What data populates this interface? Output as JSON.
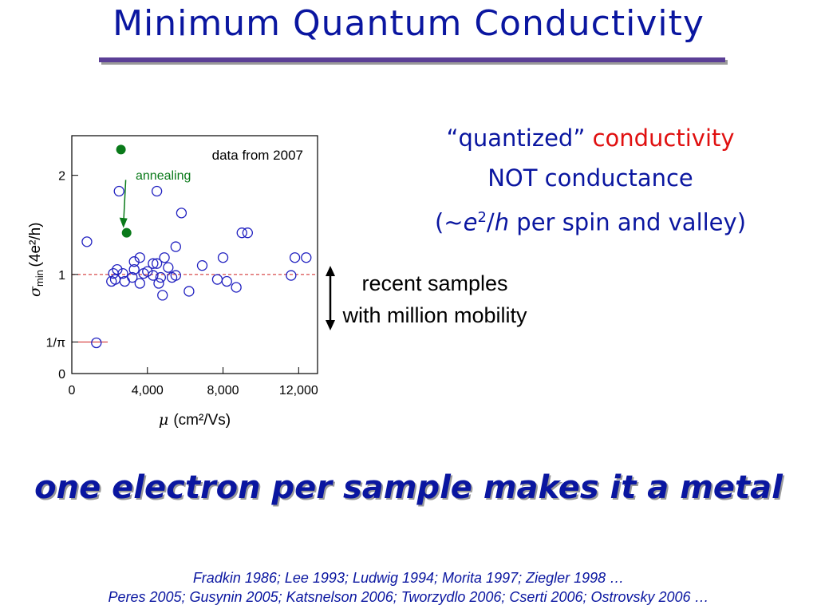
{
  "title": "Minimum Quantum Conductivity",
  "side_text": {
    "line1_quoted": "“quantized”",
    "line1_red": "conductivity",
    "line2": "NOT conductance",
    "line3_open": "(~",
    "line3_e": "e",
    "line3_sup": "2",
    "line3_slash": "/",
    "line3_h": "h",
    "line3_rest": " per spin and valley)"
  },
  "recent_note": {
    "line1": "recent samples",
    "line2": "with million mobility"
  },
  "tagline": "one electron per sample makes it a metal",
  "references": {
    "line1": "Fradkin 1986; Lee 1993; Ludwig 1994; Morita 1997; Ziegler 1998 …",
    "line2": "Peres 2005; Gusynin 2005; Katsnelson 2006; Tworzydlo 2006; Cserti 2006; Ostrovsky 2006 …"
  },
  "colors": {
    "title": "#0a16a0",
    "rule": "#5b3f96",
    "open_marker": "#2020c0",
    "filled_marker": "#0a7a1a",
    "reference_line": "#d02020",
    "highlight": "#e01010"
  },
  "chart_data": {
    "type": "scatter",
    "title": "",
    "xlabel_symbol": "μ",
    "xlabel_unit": "(cm²/Vs)",
    "ylabel_symbol": "σ",
    "ylabel_sub": "min",
    "ylabel_unit": "(4e²/h)",
    "xlim": [
      0,
      13000
    ],
    "ylim": [
      0,
      2.4
    ],
    "x_ticks": [
      {
        "value": 0,
        "label": "0"
      },
      {
        "value": 4000,
        "label": "4,000"
      },
      {
        "value": 8000,
        "label": "8,000"
      },
      {
        "value": 12000,
        "label": "12,000"
      }
    ],
    "y_ticks": [
      {
        "value": 0,
        "label": "0"
      },
      {
        "value": 0.3183,
        "label": "1/π"
      },
      {
        "value": 1,
        "label": "1"
      },
      {
        "value": 2,
        "label": "2"
      }
    ],
    "annotations": {
      "data_note": "data from 2007",
      "annealing": "annealing"
    },
    "reference_lines": [
      {
        "value": 1,
        "style": "dashed"
      },
      {
        "value": 0.3183,
        "style": "solid",
        "x_end": 1900
      }
    ],
    "series": [
      {
        "style": "open",
        "points": [
          [
            1300,
            0.31
          ],
          [
            800,
            1.33
          ],
          [
            2500,
            1.84
          ],
          [
            4500,
            1.84
          ],
          [
            5800,
            1.62
          ],
          [
            9000,
            1.42
          ],
          [
            9300,
            1.42
          ],
          [
            5500,
            1.28
          ],
          [
            8000,
            1.17
          ],
          [
            11800,
            1.17
          ],
          [
            12400,
            1.17
          ],
          [
            11600,
            0.99
          ],
          [
            6900,
            1.09
          ],
          [
            2400,
            1.05
          ],
          [
            3300,
            1.13
          ],
          [
            3600,
            1.17
          ],
          [
            4000,
            1.03
          ],
          [
            4300,
            1.11
          ],
          [
            4500,
            1.11
          ],
          [
            4900,
            1.17
          ],
          [
            5100,
            1.07
          ],
          [
            5500,
            0.99
          ],
          [
            2200,
            1.01
          ],
          [
            2300,
            0.95
          ],
          [
            2700,
            1.01
          ],
          [
            3200,
            0.97
          ],
          [
            3800,
            1.01
          ],
          [
            4300,
            0.99
          ],
          [
            4700,
            0.97
          ],
          [
            5300,
            0.97
          ],
          [
            2100,
            0.93
          ],
          [
            2800,
            0.93
          ],
          [
            3600,
            0.91
          ],
          [
            4600,
            0.91
          ],
          [
            7700,
            0.95
          ],
          [
            8200,
            0.93
          ],
          [
            8700,
            0.87
          ],
          [
            4800,
            0.79
          ],
          [
            6200,
            0.83
          ],
          [
            3300,
            1.05
          ]
        ]
      },
      {
        "style": "filled",
        "points": [
          [
            2600,
            2.26
          ],
          [
            2900,
            1.42
          ]
        ]
      }
    ]
  }
}
